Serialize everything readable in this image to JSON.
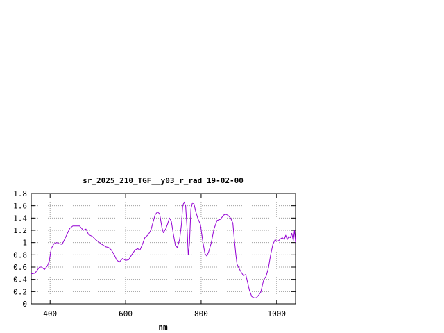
{
  "chart_data": {
    "type": "line",
    "title": "sr_2025_210_TGF__y03_r_rad 19-02-00",
    "xlabel": "nm",
    "ylabel": "",
    "xlim": [
      350,
      1050
    ],
    "ylim": [
      0,
      1.8
    ],
    "grid": true,
    "xticks": [
      400,
      600,
      800,
      1000
    ],
    "xtick_labels": [
      "400",
      "600",
      "800",
      "1000"
    ],
    "yticks": [
      0,
      0.2,
      0.4,
      0.6,
      0.8,
      1,
      1.2,
      1.4,
      1.6,
      1.8
    ],
    "ytick_labels": [
      "0",
      "0.2",
      "0.4",
      "0.6",
      "0.8",
      "1",
      "1.2",
      "1.4",
      "1.6",
      "1.8"
    ],
    "series": [
      {
        "name": "",
        "color": "#9400d3",
        "x": [
          350,
          360,
          366,
          372,
          378,
          385,
          393,
          398,
          403,
          410,
          418,
          425,
          432,
          442,
          452,
          460,
          470,
          478,
          488,
          495,
          502,
          512,
          522,
          535,
          548,
          555,
          562,
          570,
          576,
          583,
          592,
          600,
          608,
          616,
          625,
          632,
          638,
          645,
          651,
          660,
          667,
          672,
          678,
          684,
          690,
          696,
          700,
          706,
          711,
          716,
          721,
          726,
          732,
          737,
          743,
          748,
          751,
          755,
          759,
          763,
          766,
          769,
          773,
          777,
          781,
          786,
          792,
          798,
          805,
          810,
          815,
          820,
          827,
          834,
          842,
          851,
          860,
          866,
          872,
          878,
          884,
          888,
          892,
          895,
          900,
          906,
          912,
          918,
          923,
          928,
          934,
          940,
          946,
          952,
          958,
          962,
          966,
          972,
          978,
          984,
          990,
          996,
          1000,
          1005,
          1010,
          1015,
          1020,
          1024,
          1028,
          1032,
          1036,
          1040,
          1044,
          1047,
          1050
        ],
        "y": [
          0.49,
          0.5,
          0.55,
          0.6,
          0.6,
          0.56,
          0.62,
          0.7,
          0.9,
          0.98,
          1.0,
          0.98,
          0.97,
          1.1,
          1.23,
          1.27,
          1.27,
          1.27,
          1.2,
          1.22,
          1.13,
          1.1,
          1.04,
          0.98,
          0.93,
          0.92,
          0.88,
          0.8,
          0.72,
          0.68,
          0.74,
          0.71,
          0.72,
          0.8,
          0.88,
          0.9,
          0.88,
          0.98,
          1.08,
          1.13,
          1.2,
          1.32,
          1.45,
          1.5,
          1.47,
          1.25,
          1.16,
          1.22,
          1.3,
          1.4,
          1.35,
          1.15,
          0.95,
          0.92,
          1.05,
          1.3,
          1.6,
          1.66,
          1.6,
          1.2,
          0.8,
          0.98,
          1.55,
          1.65,
          1.63,
          1.5,
          1.38,
          1.3,
          1.0,
          0.82,
          0.78,
          0.85,
          1.0,
          1.22,
          1.36,
          1.38,
          1.45,
          1.46,
          1.44,
          1.4,
          1.32,
          1.05,
          0.8,
          0.65,
          0.58,
          0.52,
          0.46,
          0.48,
          0.35,
          0.22,
          0.12,
          0.1,
          0.1,
          0.14,
          0.19,
          0.3,
          0.4,
          0.45,
          0.58,
          0.8,
          0.97,
          1.05,
          1.02,
          1.03,
          1.06,
          1.08,
          1.05,
          1.12,
          1.05,
          1.1,
          1.08,
          1.15,
          1.03,
          1.2,
          1.0
        ]
      }
    ]
  }
}
